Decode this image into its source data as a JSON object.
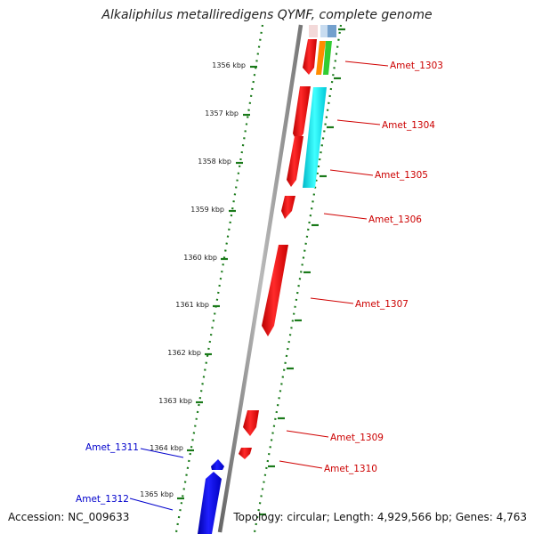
{
  "title": "Alkaliphilus metalliredigens QYMF, complete genome",
  "footer": {
    "accession": "Accession: NC_009633",
    "topology": "Topology: circular; Length: 4,929,566 bp; Genes: 4,763"
  },
  "colors": {
    "backbone": "#888888",
    "tick": "#1a7a1a",
    "forward_gene": "#ff0000",
    "reverse_gene": "#0000ff",
    "cyan_feature": "#00e5ee",
    "orange_feature": "#ff8c00",
    "green_feature": "#32cd32",
    "blue_feature": "#4682b4"
  },
  "scale_labels": [
    "1356 kbp",
    "1357 kbp",
    "1358 kbp",
    "1359 kbp",
    "1360 kbp",
    "1361 kbp",
    "1362 kbp",
    "1363 kbp",
    "1364 kbp",
    "1365 kbp"
  ],
  "genes": [
    {
      "label": "Amet_1303",
      "strand": "forward"
    },
    {
      "label": "Amet_1304",
      "strand": "forward"
    },
    {
      "label": "Amet_1305",
      "strand": "forward"
    },
    {
      "label": "Amet_1306",
      "strand": "forward"
    },
    {
      "label": "Amet_1307",
      "strand": "forward"
    },
    {
      "label": "Amet_1309",
      "strand": "forward"
    },
    {
      "label": "Amet_1310",
      "strand": "forward"
    },
    {
      "label": "Amet_1311",
      "strand": "reverse"
    },
    {
      "label": "Amet_1312",
      "strand": "reverse"
    }
  ]
}
